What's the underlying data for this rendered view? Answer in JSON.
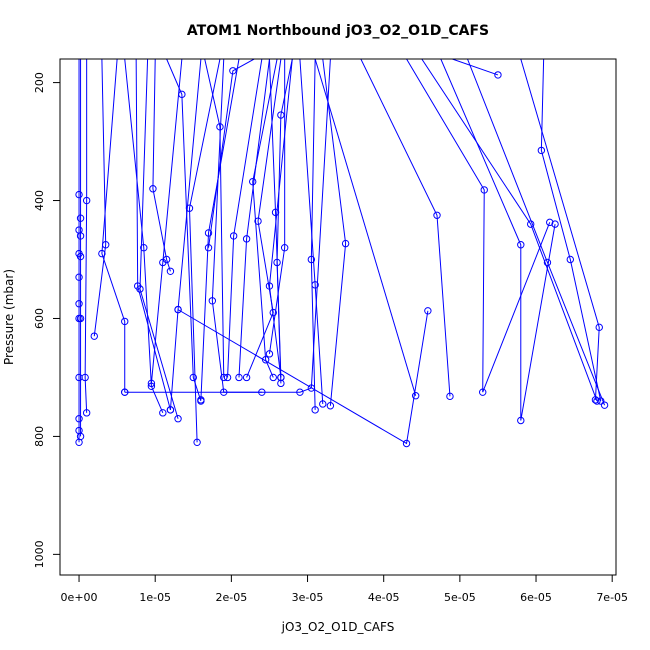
{
  "chart_data": {
    "type": "line",
    "title": "ATOM1 Northbound jO3_O2_O1D_CAFS",
    "xlabel": "jO3_O2_O1D_CAFS",
    "ylabel": "Pressure (mbar)",
    "xlim": [
      -2.5e-06,
      7.05e-05
    ],
    "ylim": [
      1035,
      160
    ],
    "y_inverted": true,
    "grid": false,
    "x_ticks": [
      0,
      1e-05,
      2e-05,
      3e-05,
      4e-05,
      5e-05,
      6e-05,
      7e-05
    ],
    "x_tick_labels": [
      "0e+00",
      "1e-05",
      "2e-05",
      "3e-05",
      "4e-05",
      "5e-05",
      "6e-05",
      "7e-05"
    ],
    "y_ticks": [
      200,
      400,
      600,
      800,
      1000
    ],
    "y_tick_labels": [
      "200",
      "400",
      "600",
      "800",
      "1000"
    ],
    "color": "#0000ff",
    "series": [
      {
        "points": [
          [
            0,
            160
          ],
          [
            0,
            390
          ],
          [
            0,
            450
          ],
          [
            0,
            490
          ],
          [
            0,
            530
          ],
          [
            0,
            575
          ],
          [
            0,
            600
          ],
          [
            0,
            700
          ],
          [
            0,
            770
          ],
          [
            0,
            790
          ],
          [
            0,
            810
          ]
        ]
      },
      {
        "points": [
          [
            2e-07,
            160
          ],
          [
            2e-07,
            430
          ],
          [
            2e-07,
            460
          ],
          [
            2e-07,
            495
          ],
          [
            2e-07,
            600
          ],
          [
            2e-07,
            800
          ]
        ]
      },
      {
        "points": [
          [
            1e-06,
            160
          ],
          [
            1e-06,
            400
          ],
          [
            8e-07,
            700
          ],
          [
            1e-06,
            760
          ]
        ]
      },
      {
        "points": [
          [
            3e-06,
            160
          ],
          [
            3.5e-06,
            475
          ],
          [
            2e-06,
            630
          ]
        ]
      },
      {
        "points": [
          [
            5e-06,
            160
          ],
          [
            3e-06,
            490
          ],
          [
            6e-06,
            605
          ],
          [
            6e-06,
            725
          ]
        ]
      },
      {
        "points": [
          [
            6e-06,
            160
          ],
          [
            8.5e-06,
            480
          ],
          [
            9.5e-06,
            715
          ],
          [
            1.1e-05,
            760
          ]
        ]
      },
      {
        "points": [
          [
            7.5e-06,
            160
          ],
          [
            7.7e-06,
            545
          ],
          [
            1.2e-05,
            755
          ]
        ]
      },
      {
        "points": [
          [
            9e-06,
            160
          ],
          [
            8e-06,
            550
          ],
          [
            1.3e-05,
            770
          ]
        ]
      },
      {
        "points": [
          [
            1e-05,
            160
          ],
          [
            9.7e-06,
            380
          ],
          [
            1.15e-05,
            500
          ],
          [
            1.2e-05,
            520
          ]
        ]
      },
      {
        "points": [
          [
            1.15e-05,
            160
          ],
          [
            1.35e-05,
            220
          ],
          [
            1.5e-05,
            700
          ],
          [
            1.6e-05,
            740
          ]
        ]
      },
      {
        "points": [
          [
            1.35e-05,
            160
          ],
          [
            1.1e-05,
            505
          ],
          [
            9.5e-06,
            710
          ]
        ]
      },
      {
        "points": [
          [
            1.6e-05,
            160
          ],
          [
            1.3e-05,
            585
          ],
          [
            1.2e-05,
            755
          ]
        ]
      },
      {
        "points": [
          [
            1.85e-05,
            160
          ],
          [
            1.45e-05,
            413
          ],
          [
            1.55e-05,
            810
          ]
        ]
      },
      {
        "points": [
          [
            2.1e-05,
            160
          ],
          [
            1.7e-05,
            455
          ],
          [
            1.6e-05,
            738
          ]
        ]
      },
      {
        "points": [
          [
            1.65e-05,
            160
          ],
          [
            1.85e-05,
            275
          ],
          [
            1.9e-05,
            700
          ]
        ]
      },
      {
        "points": [
          [
            2.3e-05,
            160
          ],
          [
            2.02e-05,
            180
          ],
          [
            1.7e-05,
            480
          ]
        ]
      },
      {
        "points": [
          [
            2.5e-05,
            160
          ],
          [
            2.2e-05,
            465
          ],
          [
            2.1e-05,
            700
          ]
        ]
      },
      {
        "points": [
          [
            2.4e-05,
            160
          ],
          [
            2.03e-05,
            460
          ],
          [
            1.95e-05,
            700
          ]
        ]
      },
      {
        "points": [
          [
            2.65e-05,
            160
          ],
          [
            2.35e-05,
            435
          ],
          [
            2.55e-05,
            590
          ],
          [
            2.2e-05,
            700
          ]
        ]
      },
      {
        "points": [
          [
            1.9e-05,
            160
          ],
          [
            1.75e-05,
            570
          ],
          [
            1.9e-05,
            725
          ],
          [
            2.4e-05,
            725
          ]
        ]
      },
      {
        "points": [
          [
            2.6e-05,
            160
          ],
          [
            2.28e-05,
            368
          ],
          [
            2.45e-05,
            670
          ],
          [
            2.55e-05,
            700
          ]
        ]
      },
      {
        "points": [
          [
            2.8e-05,
            160
          ],
          [
            2.65e-05,
            255
          ],
          [
            2.6e-05,
            505
          ],
          [
            2.65e-05,
            710
          ]
        ]
      },
      {
        "points": [
          [
            2.8e-05,
            160
          ],
          [
            2.5e-05,
            545
          ],
          [
            2.65e-05,
            700
          ]
        ]
      },
      {
        "points": [
          [
            2.5e-05,
            160
          ],
          [
            2.58e-05,
            420
          ],
          [
            2.65e-05,
            700
          ]
        ]
      },
      {
        "points": [
          [
            2.7e-05,
            160
          ],
          [
            2.7e-05,
            480
          ],
          [
            2.5e-05,
            660
          ]
        ]
      },
      {
        "points": [
          [
            3.1e-05,
            160
          ],
          [
            3.05e-05,
            500
          ],
          [
            3.1e-05,
            755
          ]
        ]
      },
      {
        "points": [
          [
            2.9e-05,
            160
          ],
          [
            3.1e-05,
            543
          ],
          [
            3.2e-05,
            745
          ]
        ]
      },
      {
        "points": [
          [
            3.2e-05,
            160
          ],
          [
            3.5e-05,
            473
          ],
          [
            3.3e-05,
            748
          ]
        ]
      },
      {
        "points": [
          [
            3.3e-05,
            160
          ],
          [
            3.05e-05,
            718
          ],
          [
            2.9e-05,
            725
          ],
          [
            6e-06,
            725
          ]
        ]
      },
      {
        "points": [
          [
            1.3e-05,
            585
          ],
          [
            4.3e-05,
            812
          ],
          [
            4.58e-05,
            587
          ]
        ]
      },
      {
        "points": [
          [
            3.7e-05,
            160
          ],
          [
            4.7e-05,
            425
          ],
          [
            4.87e-05,
            732
          ]
        ]
      },
      {
        "points": [
          [
            3.1e-05,
            160
          ],
          [
            4.42e-05,
            731
          ]
        ]
      },
      {
        "points": [
          [
            4.3e-05,
            160
          ],
          [
            5.32e-05,
            382
          ],
          [
            5.3e-05,
            725
          ],
          [
            6.18e-05,
            437
          ]
        ]
      },
      {
        "points": [
          [
            4.9e-05,
            160
          ],
          [
            5.5e-05,
            187
          ]
        ]
      },
      {
        "points": [
          [
            4.5e-05,
            160
          ],
          [
            5.93e-05,
            440
          ],
          [
            6.8e-05,
            740
          ]
        ]
      },
      {
        "points": [
          [
            4.75e-05,
            160
          ],
          [
            5.8e-05,
            475
          ],
          [
            5.8e-05,
            773
          ],
          [
            6.25e-05,
            440
          ]
        ]
      },
      {
        "points": [
          [
            5.1e-05,
            160
          ],
          [
            6.15e-05,
            505
          ],
          [
            6.9e-05,
            747
          ]
        ]
      },
      {
        "points": [
          [
            6.1e-05,
            160
          ],
          [
            6.07e-05,
            315
          ],
          [
            6.45e-05,
            500
          ],
          [
            6.85e-05,
            740
          ]
        ]
      },
      {
        "points": [
          [
            5.8e-05,
            160
          ],
          [
            6.83e-05,
            615
          ],
          [
            6.78e-05,
            738
          ]
        ]
      }
    ]
  }
}
